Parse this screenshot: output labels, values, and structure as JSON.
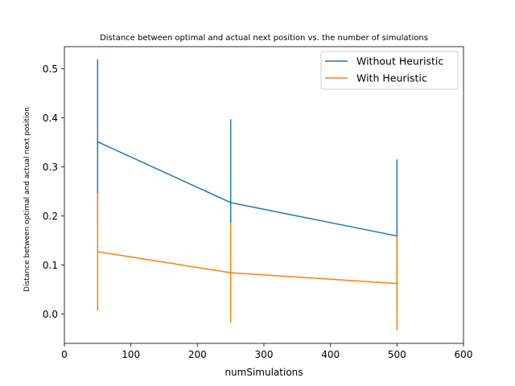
{
  "chart_data": {
    "type": "line",
    "title": "Distance between optimal and actual next position vs. the number of simulations",
    "xlabel": "numSimulations",
    "ylabel": "Distance between optimal and actual next position",
    "xlim": [
      0,
      600
    ],
    "ylim": [
      -0.06,
      0.545
    ],
    "xticks": [
      0,
      100,
      200,
      300,
      400,
      500,
      600
    ],
    "yticks": [
      0.0,
      0.1,
      0.2,
      0.3,
      0.4,
      0.5
    ],
    "xtick_labels": [
      "0",
      "100",
      "200",
      "300",
      "400",
      "500",
      "600"
    ],
    "ytick_labels": [
      "0.0",
      "0.1",
      "0.2",
      "0.3",
      "0.4",
      "0.5"
    ],
    "grid": false,
    "legend_position": "top-right",
    "x": [
      50,
      250,
      500
    ],
    "series": [
      {
        "name": "Without Heuristic",
        "color": "#1f77b4",
        "values": [
          0.351,
          0.227,
          0.159
        ],
        "error_low": [
          0.184,
          0.186,
          0.004
        ],
        "error_high": [
          0.519,
          0.397,
          0.315
        ]
      },
      {
        "name": "With Heuristic",
        "color": "#ff7f0e",
        "values": [
          0.127,
          0.084,
          0.062
        ],
        "error_low": [
          0.007,
          -0.018,
          -0.033
        ],
        "error_high": [
          0.247,
          0.186,
          0.158
        ]
      }
    ]
  }
}
